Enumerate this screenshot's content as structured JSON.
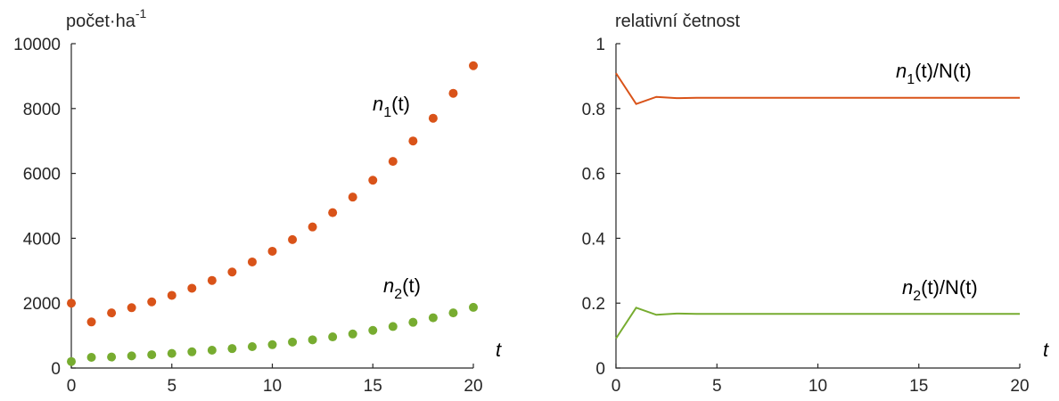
{
  "chart_data": [
    {
      "type": "scatter",
      "title": "",
      "ylabel": "počet·ha",
      "ylabel_exp": "-1",
      "xlabel": "t",
      "xlim": [
        0,
        20
      ],
      "ylim": [
        0,
        10000
      ],
      "xticks": [
        "0",
        "5",
        "10",
        "15",
        "20"
      ],
      "yticks": [
        "0",
        "2000",
        "4000",
        "6000",
        "8000",
        "10000"
      ],
      "grid": false,
      "series": [
        {
          "name": "n1(t)",
          "color": "#d95319",
          "x": [
            0,
            1,
            2,
            3,
            4,
            5,
            6,
            7,
            8,
            9,
            10,
            11,
            12,
            13,
            14,
            15,
            16,
            17,
            18,
            19,
            20
          ],
          "values": [
            2000,
            1420,
            1700,
            1860,
            2040,
            2240,
            2460,
            2700,
            2960,
            3270,
            3600,
            3960,
            4350,
            4790,
            5270,
            5790,
            6370,
            7000,
            7700,
            8470,
            9320
          ]
        },
        {
          "name": "n2(t)",
          "color": "#77ac30",
          "x": [
            0,
            1,
            2,
            3,
            4,
            5,
            6,
            7,
            8,
            9,
            10,
            11,
            12,
            13,
            14,
            15,
            16,
            17,
            18,
            19,
            20
          ],
          "values": [
            200,
            330,
            340,
            375,
            410,
            450,
            500,
            550,
            600,
            660,
            720,
            800,
            870,
            960,
            1050,
            1160,
            1280,
            1410,
            1550,
            1700,
            1870
          ]
        }
      ],
      "annotations": [
        {
          "series": 0,
          "italic": "n",
          "sub": "1",
          "rest": "(t)"
        },
        {
          "series": 1,
          "italic": "n",
          "sub": "2",
          "rest": "(t)"
        }
      ]
    },
    {
      "type": "line",
      "title": "",
      "ylabel": "relativní četnost",
      "xlabel": "t",
      "xlim": [
        0,
        20
      ],
      "ylim": [
        0,
        1
      ],
      "xticks": [
        "0",
        "5",
        "10",
        "15",
        "20"
      ],
      "yticks": [
        "0",
        "0.2",
        "0.4",
        "0.6",
        "0.8",
        "1"
      ],
      "grid": false,
      "series": [
        {
          "name": "n1(t)/N(t)",
          "color": "#d95319",
          "x": [
            0,
            1,
            2,
            3,
            4,
            5,
            6,
            7,
            8,
            9,
            10,
            11,
            12,
            13,
            14,
            15,
            16,
            17,
            18,
            19,
            20
          ],
          "values": [
            0.909,
            0.814,
            0.836,
            0.832,
            0.833,
            0.833,
            0.833,
            0.833,
            0.833,
            0.833,
            0.833,
            0.833,
            0.833,
            0.833,
            0.833,
            0.833,
            0.833,
            0.833,
            0.833,
            0.833,
            0.833
          ]
        },
        {
          "name": "n2(t)/N(t)",
          "color": "#77ac30",
          "x": [
            0,
            1,
            2,
            3,
            4,
            5,
            6,
            7,
            8,
            9,
            10,
            11,
            12,
            13,
            14,
            15,
            16,
            17,
            18,
            19,
            20
          ],
          "values": [
            0.091,
            0.186,
            0.164,
            0.168,
            0.167,
            0.167,
            0.167,
            0.167,
            0.167,
            0.167,
            0.167,
            0.167,
            0.167,
            0.167,
            0.167,
            0.167,
            0.167,
            0.167,
            0.167,
            0.167,
            0.167
          ]
        }
      ],
      "annotations": [
        {
          "series": 0,
          "italic": "n",
          "sub": "1",
          "rest": "(t)/N(t)"
        },
        {
          "series": 1,
          "italic": "n",
          "sub": "2",
          "rest": "(t)/N(t)"
        }
      ]
    }
  ]
}
